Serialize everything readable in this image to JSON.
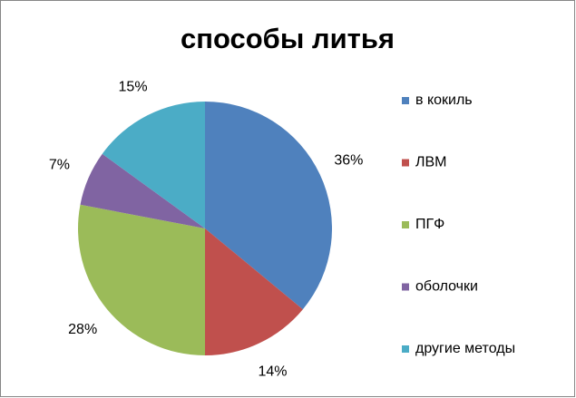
{
  "chart_data": {
    "type": "pie",
    "title": "способы литья",
    "categories": [
      "в кокиль",
      "ЛВМ",
      "ПГФ",
      "оболочки",
      "другие методы"
    ],
    "values": [
      36,
      14,
      28,
      7,
      15
    ],
    "value_labels": [
      "36%",
      "14%",
      "28%",
      "7%",
      "15%"
    ],
    "colors": [
      "#4f81bd",
      "#c0504d",
      "#9bbb59",
      "#8064a2",
      "#4bacc6"
    ],
    "legend": "right"
  }
}
